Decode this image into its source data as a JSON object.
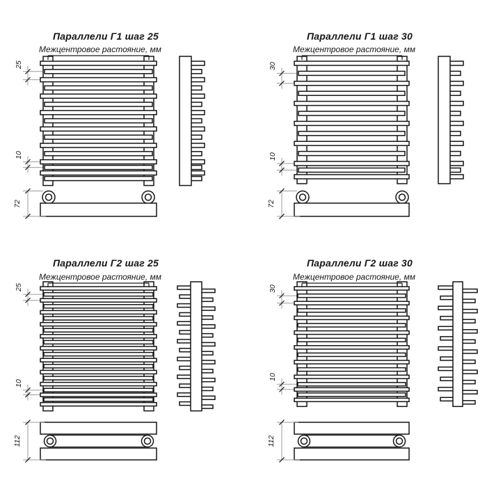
{
  "sheet": {
    "background": "#ffffff",
    "line_color": "#141414",
    "thin_line_color": "#9b9b9b"
  },
  "drawings": [
    {
      "title": "Параллели Г1 шаг 25",
      "subtitle": "Межцентровое растояние, мм",
      "model": "Г1",
      "step_mm": "25",
      "inner_gap_mm": "10",
      "depth_mm": "72",
      "rows": 1,
      "bar_count": 16
    },
    {
      "title": "Параллели Г1 шаг 30",
      "subtitle": "Межцентровое растояние, мм",
      "model": "Г1",
      "step_mm": "30",
      "inner_gap_mm": "10",
      "depth_mm": "72",
      "rows": 1,
      "bar_count": 13
    },
    {
      "title": "Параллели Г2 шаг 25",
      "subtitle": "Межцентровое растояние, мм",
      "model": "Г2",
      "step_mm": "25",
      "inner_gap_mm": "10",
      "depth_mm": "112",
      "rows": 2,
      "bar_count": 21
    },
    {
      "title": "Параллели Г2 шаг 30",
      "subtitle": "Межцентровое растояние, мм",
      "model": "Г2",
      "step_mm": "30",
      "inner_gap_mm": "10",
      "depth_mm": "112",
      "rows": 2,
      "bar_count": 17
    }
  ]
}
